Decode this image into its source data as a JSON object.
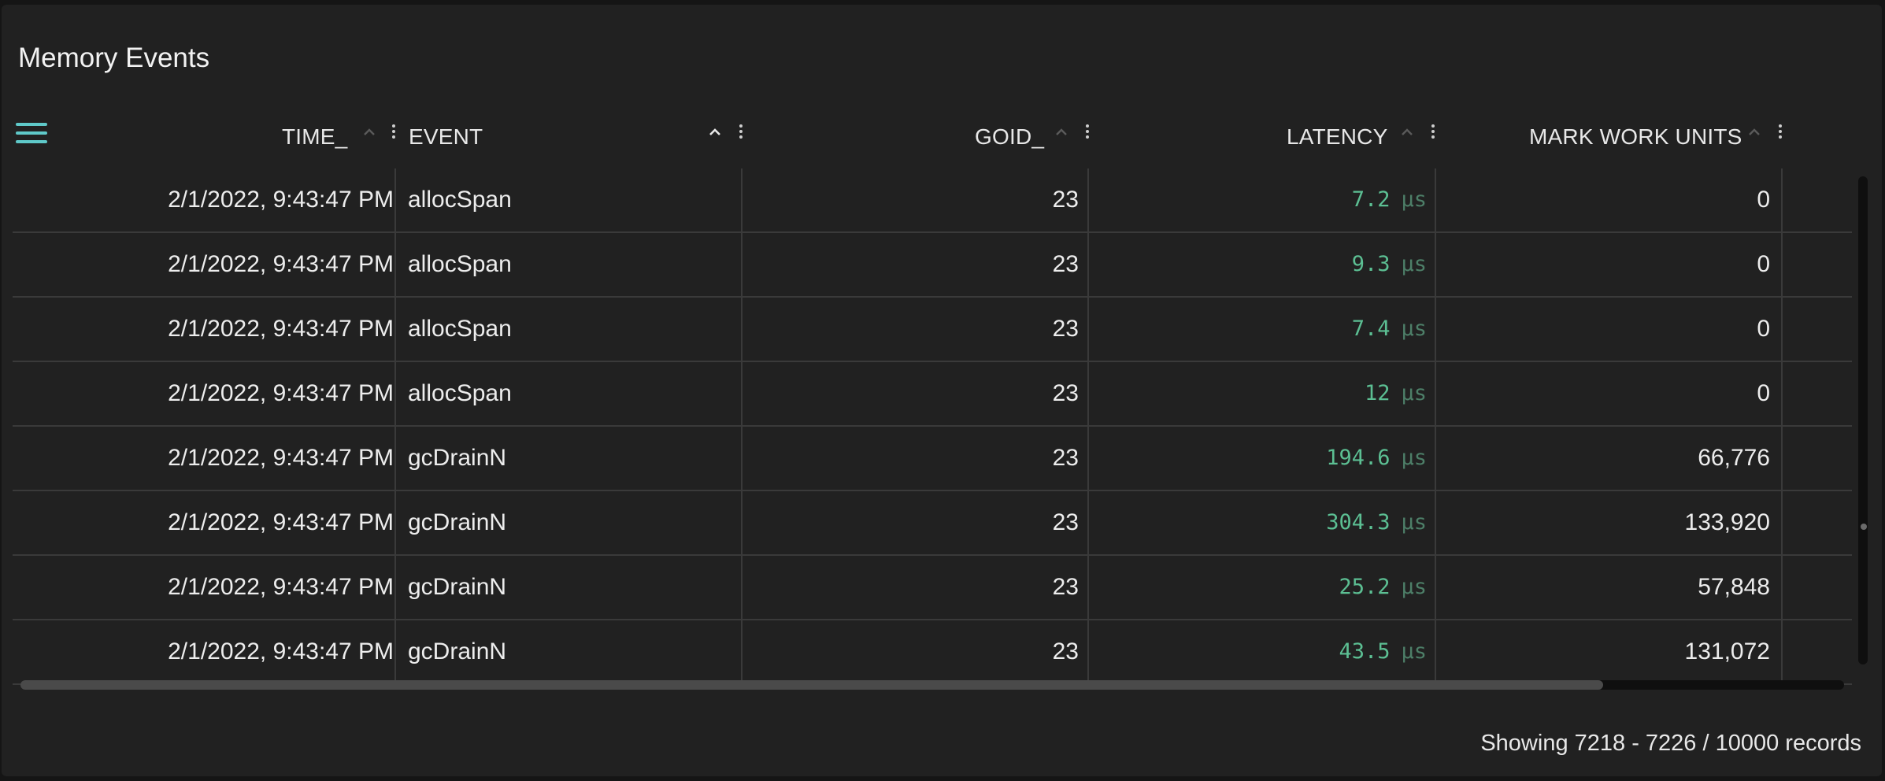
{
  "panel": {
    "title": "Memory Events"
  },
  "table": {
    "columns": [
      {
        "label": "TIME_",
        "sort": "none"
      },
      {
        "label": "EVENT",
        "sort": "asc"
      },
      {
        "label": "GOID_",
        "sort": "none"
      },
      {
        "label": "LATENCY",
        "sort": "none"
      },
      {
        "label": "MARK WORK UNITS",
        "sort": "none"
      }
    ],
    "latency_unit": "µs",
    "rows": [
      {
        "time": "2/1/2022, 9:43:47 PM",
        "event": "allocSpan",
        "goid": "23",
        "latency": "7.2",
        "mark_work_units": "0"
      },
      {
        "time": "2/1/2022, 9:43:47 PM",
        "event": "allocSpan",
        "goid": "23",
        "latency": "9.3",
        "mark_work_units": "0"
      },
      {
        "time": "2/1/2022, 9:43:47 PM",
        "event": "allocSpan",
        "goid": "23",
        "latency": "7.4",
        "mark_work_units": "0"
      },
      {
        "time": "2/1/2022, 9:43:47 PM",
        "event": "allocSpan",
        "goid": "23",
        "latency": "12",
        "mark_work_units": "0"
      },
      {
        "time": "2/1/2022, 9:43:47 PM",
        "event": "gcDrainN",
        "goid": "23",
        "latency": "194.6",
        "mark_work_units": "66,776"
      },
      {
        "time": "2/1/2022, 9:43:47 PM",
        "event": "gcDrainN",
        "goid": "23",
        "latency": "304.3",
        "mark_work_units": "133,920"
      },
      {
        "time": "2/1/2022, 9:43:47 PM",
        "event": "gcDrainN",
        "goid": "23",
        "latency": "25.2",
        "mark_work_units": "57,848"
      },
      {
        "time": "2/1/2022, 9:43:47 PM",
        "event": "gcDrainN",
        "goid": "23",
        "latency": "43.5",
        "mark_work_units": "131,072"
      }
    ]
  },
  "footer": {
    "status": "Showing 7218 - 7226 / 10000 records"
  },
  "colors": {
    "accent": "#5fc9c9",
    "latency": "#5cbf93",
    "background": "#212121"
  },
  "icons": {
    "menu": "hamburger-menu-icon",
    "sort": "chevron-up-icon",
    "column_menu": "kebab-icon"
  }
}
